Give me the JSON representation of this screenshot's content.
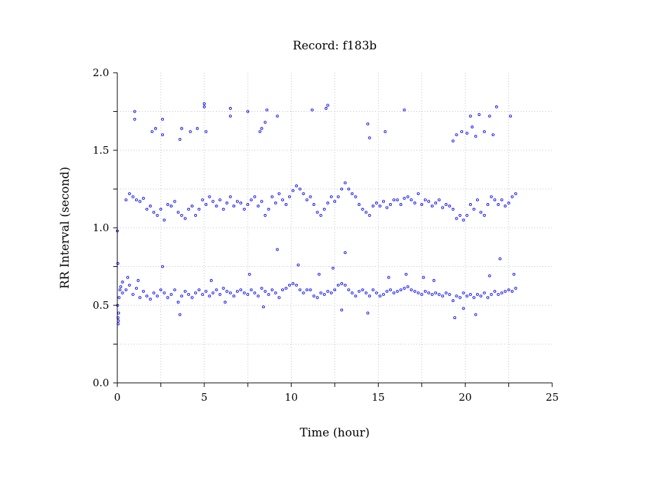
{
  "chart_data": {
    "type": "scatter",
    "title": "Record:  f183b",
    "xlabel": "Time (hour)",
    "ylabel": "RR Interval (second)",
    "xlim": [
      0,
      25
    ],
    "ylim": [
      0.0,
      2.0
    ],
    "x_ticks": [
      0,
      5,
      10,
      15,
      20,
      25
    ],
    "x_tick_labels": [
      "0",
      "5",
      "10",
      "15",
      "20",
      "25"
    ],
    "y_ticks": [
      0.0,
      0.5,
      1.0,
      1.5,
      2.0
    ],
    "y_tick_labels": [
      "0.0",
      "0.5",
      "1.0",
      "1.5",
      "2.0"
    ],
    "grid": true,
    "marker": "open-circle",
    "point_color": "#0000ff",
    "series": [
      {
        "x": [
          0.0,
          0.03,
          0.05,
          0.08,
          0.1,
          0.15,
          0.2,
          0.3,
          0.5,
          0.7,
          0.9,
          1.1,
          1.3,
          1.5,
          1.7,
          1.9,
          2.1,
          2.3,
          2.5,
          2.7,
          2.9,
          3.1,
          3.3,
          3.5,
          3.7,
          3.9,
          4.1,
          4.3,
          4.5,
          4.7,
          4.9,
          5.1,
          5.3,
          5.5,
          5.7,
          5.9,
          6.1,
          6.3,
          6.5,
          6.7,
          6.9,
          7.1,
          7.3,
          7.5,
          7.7,
          7.9,
          8.1,
          8.3,
          8.5,
          8.7,
          8.9,
          9.1,
          9.3,
          9.5,
          9.7,
          9.9,
          10.1,
          10.3,
          10.5,
          10.7,
          10.9,
          11.1,
          11.3,
          11.5,
          11.7,
          11.9,
          12.1,
          12.3,
          12.5,
          12.7,
          12.9,
          13.1,
          13.3,
          13.5,
          13.7,
          13.9,
          14.1,
          14.3,
          14.5,
          14.7,
          14.9,
          15.1,
          15.3,
          15.5,
          15.7,
          15.9,
          16.1,
          16.3,
          16.5,
          16.7,
          16.9,
          17.1,
          17.3,
          17.5,
          17.7,
          17.9,
          18.1,
          18.3,
          18.5,
          18.7,
          18.9,
          19.1,
          19.3,
          19.5,
          19.7,
          19.9,
          20.1,
          20.3,
          20.5,
          20.7,
          20.9,
          21.1,
          21.3,
          21.5,
          21.7,
          21.9,
          22.1,
          22.3,
          22.5,
          22.7,
          22.9,
          0.02,
          0.04,
          0.06,
          0.6,
          1.2,
          2.6,
          3.6,
          5.4,
          6.2,
          7.6,
          8.4,
          9.2,
          10.4,
          11.6,
          12.4,
          12.9,
          13.1,
          14.4,
          15.6,
          16.6,
          17.6,
          18.2,
          19.4,
          19.9,
          20.6,
          21.4,
          22.0,
          22.8,
          0.3,
          0.5,
          0.7,
          0.9,
          1.1,
          1.3,
          1.5,
          1.7,
          1.9,
          2.1,
          2.3,
          2.5,
          2.7,
          2.9,
          3.1,
          3.3,
          3.5,
          3.7,
          3.9,
          4.1,
          4.3,
          4.5,
          4.7,
          4.9,
          5.1,
          5.3,
          5.5,
          5.7,
          5.9,
          6.1,
          6.3,
          6.5,
          6.7,
          6.9,
          7.1,
          7.3,
          7.5,
          7.7,
          7.9,
          8.1,
          8.3,
          8.5,
          8.7,
          8.9,
          9.1,
          9.3,
          9.5,
          9.7,
          9.9,
          10.1,
          10.3,
          10.5,
          10.7,
          10.9,
          11.1,
          11.3,
          11.5,
          11.7,
          11.9,
          12.1,
          12.3,
          12.5,
          12.7,
          12.9,
          13.1,
          13.3,
          13.5,
          13.7,
          13.9,
          14.1,
          14.3,
          14.5,
          14.7,
          14.9,
          15.1,
          15.3,
          15.5,
          15.7,
          15.9,
          16.1,
          16.3,
          16.5,
          16.7,
          16.9,
          17.1,
          17.3,
          17.5,
          17.7,
          17.9,
          18.1,
          18.3,
          18.5,
          18.7,
          18.9,
          19.1,
          19.3,
          19.5,
          19.7,
          19.9,
          20.1,
          20.3,
          20.5,
          20.7,
          20.9,
          21.1,
          21.3,
          21.5,
          21.7,
          21.9,
          22.1,
          22.3,
          22.5,
          22.7,
          22.9,
          1.0,
          1.0,
          2.0,
          2.2,
          2.6,
          2.6,
          3.6,
          3.7,
          4.2,
          4.6,
          5.0,
          5.0,
          5.1,
          6.5,
          6.5,
          7.5,
          8.2,
          8.3,
          8.5,
          8.6,
          9.2,
          11.2,
          12.0,
          12.1,
          14.4,
          14.5,
          15.4,
          16.5,
          19.3,
          19.5,
          19.8,
          20.1,
          20.3,
          20.4,
          20.6,
          20.8,
          21.1,
          21.4,
          21.6,
          21.8,
          22.6
        ],
        "y": [
          0.98,
          0.77,
          0.38,
          0.45,
          0.55,
          0.6,
          0.62,
          0.58,
          0.6,
          0.63,
          0.57,
          0.61,
          0.55,
          0.59,
          0.56,
          0.54,
          0.58,
          0.56,
          0.6,
          0.58,
          0.55,
          0.57,
          0.6,
          0.52,
          0.56,
          0.59,
          0.57,
          0.55,
          0.58,
          0.6,
          0.57,
          0.59,
          0.56,
          0.58,
          0.6,
          0.57,
          0.61,
          0.59,
          0.58,
          0.56,
          0.59,
          0.6,
          0.58,
          0.57,
          0.6,
          0.58,
          0.56,
          0.61,
          0.59,
          0.57,
          0.6,
          0.58,
          0.55,
          0.6,
          0.61,
          0.63,
          0.64,
          0.63,
          0.6,
          0.58,
          0.6,
          0.6,
          0.56,
          0.55,
          0.58,
          0.57,
          0.59,
          0.58,
          0.6,
          0.63,
          0.64,
          0.63,
          0.6,
          0.58,
          0.56,
          0.59,
          0.6,
          0.58,
          0.56,
          0.6,
          0.58,
          0.56,
          0.57,
          0.59,
          0.6,
          0.58,
          0.59,
          0.6,
          0.61,
          0.62,
          0.6,
          0.59,
          0.58,
          0.57,
          0.59,
          0.58,
          0.57,
          0.58,
          0.57,
          0.56,
          0.58,
          0.57,
          0.53,
          0.56,
          0.55,
          0.58,
          0.56,
          0.57,
          0.55,
          0.57,
          0.56,
          0.58,
          0.55,
          0.57,
          0.59,
          0.57,
          0.58,
          0.59,
          0.6,
          0.59,
          0.61,
          0.5,
          0.42,
          0.4,
          0.68,
          0.66,
          0.75,
          0.44,
          0.66,
          0.52,
          0.7,
          0.49,
          0.86,
          0.76,
          0.7,
          0.74,
          0.47,
          0.84,
          0.45,
          0.68,
          0.7,
          0.68,
          0.66,
          0.42,
          0.48,
          0.44,
          0.69,
          0.8,
          0.7,
          0.65,
          1.18,
          1.22,
          1.2,
          1.18,
          1.17,
          1.19,
          1.12,
          1.14,
          1.1,
          1.08,
          1.12,
          1.05,
          1.15,
          1.14,
          1.17,
          1.1,
          1.08,
          1.06,
          1.12,
          1.14,
          1.08,
          1.12,
          1.18,
          1.15,
          1.2,
          1.17,
          1.14,
          1.18,
          1.12,
          1.16,
          1.2,
          1.14,
          1.17,
          1.16,
          1.12,
          1.15,
          1.18,
          1.2,
          1.14,
          1.17,
          1.08,
          1.12,
          1.2,
          1.16,
          1.22,
          1.18,
          1.15,
          1.2,
          1.24,
          1.27,
          1.25,
          1.22,
          1.18,
          1.2,
          1.15,
          1.1,
          1.08,
          1.12,
          1.16,
          1.2,
          1.17,
          1.2,
          1.25,
          1.29,
          1.25,
          1.22,
          1.2,
          1.15,
          1.12,
          1.1,
          1.08,
          1.14,
          1.16,
          1.14,
          1.17,
          1.13,
          1.15,
          1.18,
          1.18,
          1.15,
          1.19,
          1.2,
          1.18,
          1.16,
          1.22,
          1.15,
          1.18,
          1.17,
          1.14,
          1.16,
          1.18,
          1.13,
          1.15,
          1.14,
          1.12,
          1.06,
          1.08,
          1.05,
          1.08,
          1.15,
          1.12,
          1.18,
          1.1,
          1.08,
          1.15,
          1.2,
          1.18,
          1.15,
          1.18,
          1.14,
          1.16,
          1.2,
          1.22,
          1.75,
          1.7,
          1.62,
          1.64,
          1.6,
          1.7,
          1.57,
          1.64,
          1.62,
          1.64,
          1.8,
          1.78,
          1.62,
          1.77,
          1.72,
          1.75,
          1.62,
          1.64,
          1.68,
          1.76,
          1.72,
          1.76,
          1.77,
          1.79,
          1.67,
          1.58,
          1.62,
          1.76,
          1.56,
          1.6,
          1.62,
          1.61,
          1.72,
          1.65,
          1.59,
          1.73,
          1.62,
          1.72,
          1.6,
          1.78,
          1.72
        ]
      }
    ]
  }
}
